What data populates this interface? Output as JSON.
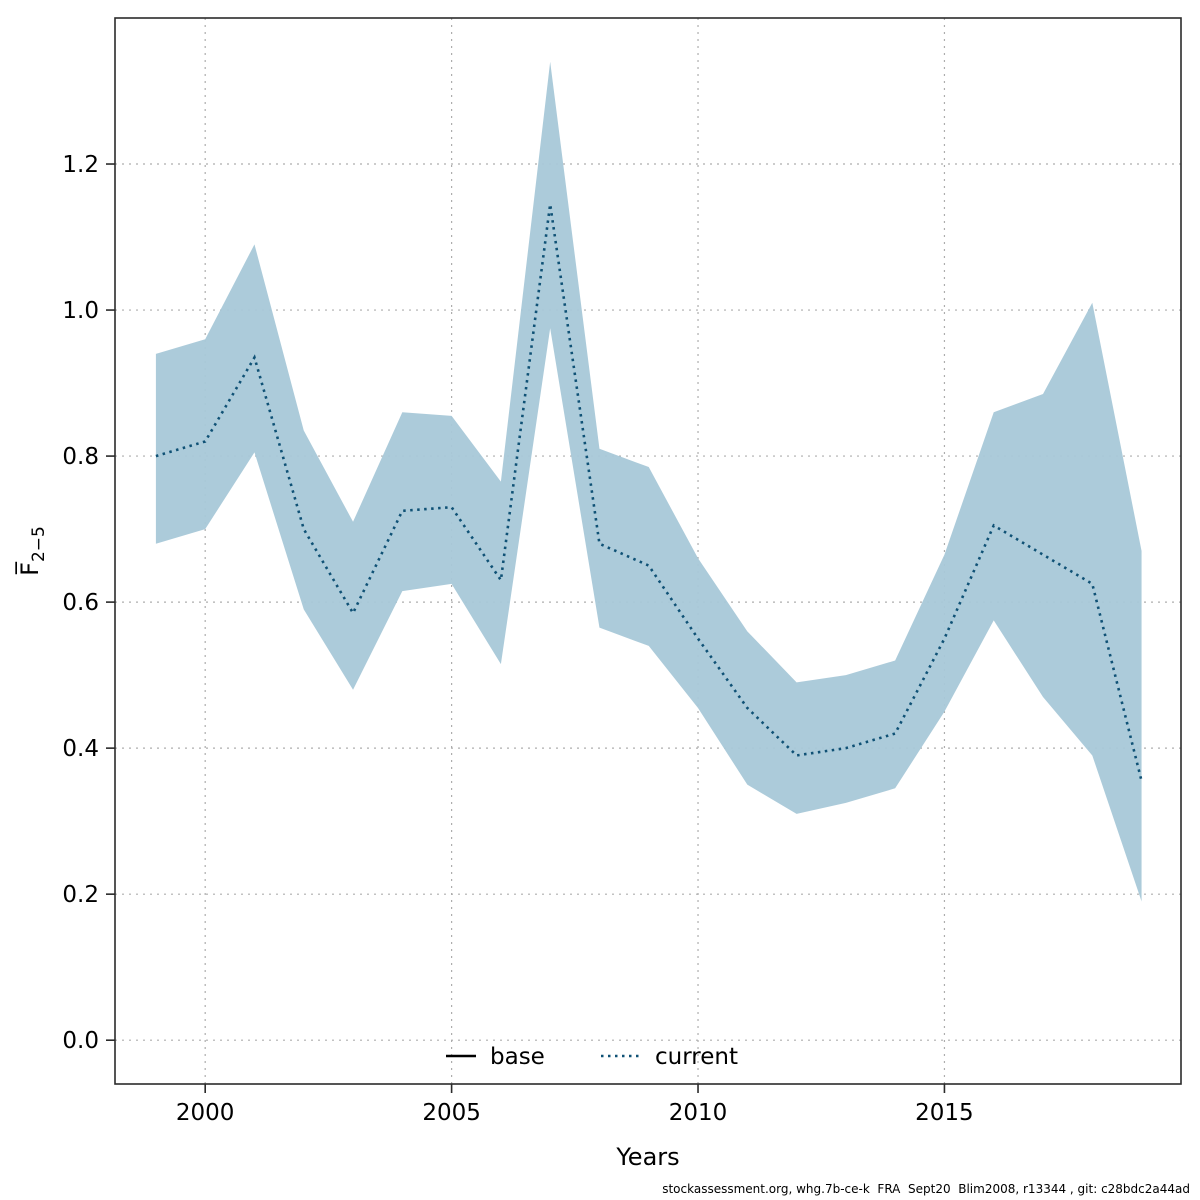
{
  "footer": {
    "text": "stockassessment.org, whg.7b-ce-k  FRA  Sept20  Blim2008, r13344 , git: c28bdc2a44ad"
  },
  "chart_data": {
    "type": "line",
    "title": "",
    "xlabel": "Years",
    "ylabel_main": "F̅",
    "ylabel_sub": "2−5",
    "grid": true,
    "legend_position": "bottom-center-inside",
    "xlim": [
      1998.17,
      2019.8
    ],
    "ylim": [
      -0.06,
      1.4
    ],
    "xticks": [
      2000,
      2005,
      2010,
      2015
    ],
    "yticks": [
      0.0,
      0.2,
      0.4,
      0.6,
      0.8,
      1.0,
      1.2
    ],
    "x": [
      1999,
      2000,
      2001,
      2002,
      2003,
      2004,
      2005,
      2006,
      2007,
      2008,
      2009,
      2010,
      2011,
      2012,
      2013,
      2014,
      2015,
      2016,
      2017,
      2018,
      2019
    ],
    "series": [
      {
        "name": "current",
        "style": "dotted",
        "color": "#0f5175",
        "values": [
          0.8,
          0.82,
          0.935,
          0.7,
          0.585,
          0.725,
          0.73,
          0.63,
          1.145,
          0.68,
          0.65,
          0.55,
          0.455,
          0.39,
          0.4,
          0.42,
          0.55,
          0.705,
          0.665,
          0.625,
          0.355
        ],
        "band": {
          "color": "#a8c8d8",
          "upper": [
            0.94,
            0.96,
            1.09,
            0.835,
            0.71,
            0.86,
            0.855,
            0.765,
            1.34,
            0.81,
            0.785,
            0.66,
            0.56,
            0.49,
            0.5,
            0.52,
            0.665,
            0.86,
            0.885,
            1.01,
            0.67
          ],
          "lower": [
            0.68,
            0.7,
            0.805,
            0.59,
            0.48,
            0.615,
            0.625,
            0.515,
            0.975,
            0.565,
            0.54,
            0.455,
            0.35,
            0.31,
            0.325,
            0.345,
            0.45,
            0.575,
            0.47,
            0.39,
            0.19
          ]
        }
      }
    ],
    "legend": [
      {
        "label": "base",
        "color": "#000000",
        "style": "solid"
      },
      {
        "label": "current",
        "color": "#0f5175",
        "style": "dotted"
      }
    ],
    "colors": {
      "grid": "#adadad",
      "border": "#2b2b2b",
      "tick_text": "#000000",
      "band_fill": "#a8c8d8",
      "current_line": "#0f5175"
    }
  }
}
